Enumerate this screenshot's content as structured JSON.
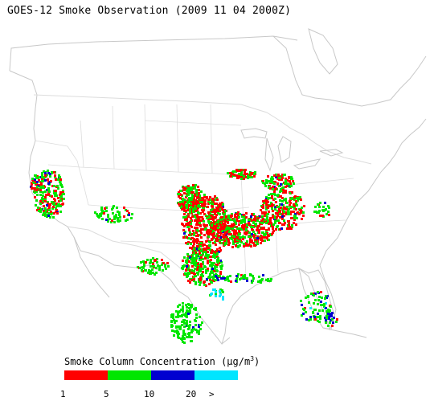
{
  "title": "GOES-12 Smoke Observation (2009 11 04  2000Z)",
  "legend": {
    "title_prefix": "Smoke Column Concentration (",
    "unit_mu": "μ",
    "unit_rest": "g/m",
    "unit_sup": "3",
    "title_suffix": ")",
    "colors": [
      "#ff0000",
      "#00e600",
      "#0000d0",
      "#00e5ff"
    ],
    "bins": [
      {
        "range": "1–5",
        "color": "#ff0000"
      },
      {
        "range": "5–10",
        "color": "#00e600"
      },
      {
        "range": "10–20",
        "color": "#0000d0"
      },
      {
        "range": ">20",
        "color": "#00e5ff"
      }
    ],
    "ticks": [
      "1",
      "5",
      "10",
      "20",
      ">"
    ]
  },
  "map_style": {
    "land_outline": "#c8c8c8",
    "state_lines": "#dcdcdc"
  }
}
